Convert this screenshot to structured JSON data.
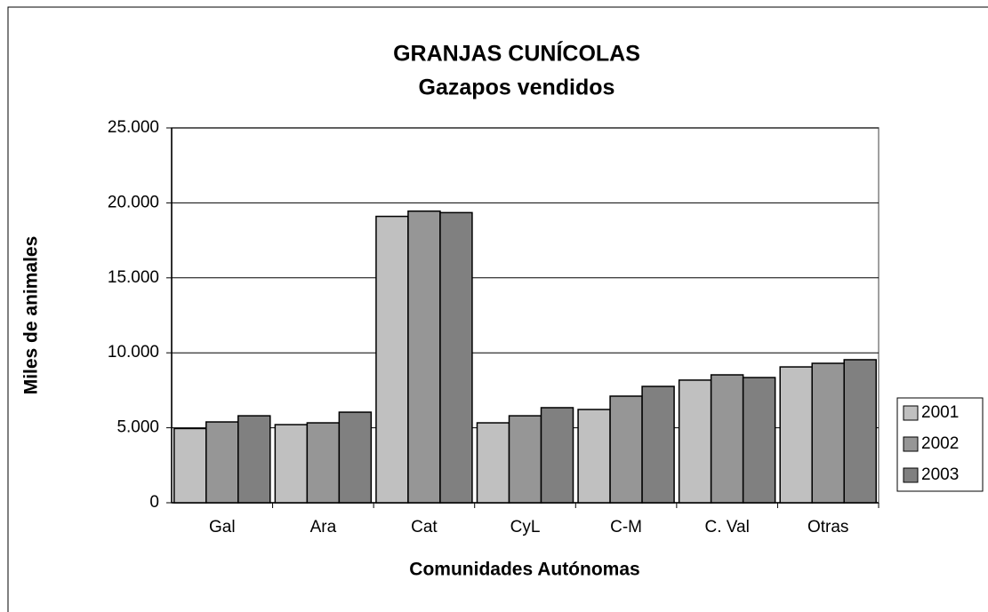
{
  "chart_data": {
    "type": "bar",
    "title": "GRANJAS CUNÍCOLAS",
    "subtitle": "Gazapos vendidos",
    "x_label": "Comunidades Autónomas",
    "y_label": "Miles de animales",
    "categories": [
      "Gal",
      "Ara",
      "Cat",
      "CyL",
      "C-M",
      "C. Val",
      "Otras"
    ],
    "series": [
      {
        "name": "2001",
        "color": "#c0c0c0",
        "values": [
          4950,
          5210,
          19100,
          5330,
          6220,
          8180,
          9060
        ]
      },
      {
        "name": "2002",
        "color": "#969696",
        "values": [
          5390,
          5330,
          19450,
          5800,
          7110,
          8530,
          9300
        ]
      },
      {
        "name": "2003",
        "color": "#808080",
        "values": [
          5800,
          6040,
          19350,
          6340,
          7760,
          8350,
          9540
        ]
      }
    ],
    "ylim": [
      0,
      25000
    ],
    "yticks": [
      0,
      {
        "value": 5000,
        "label": "5.000"
      },
      {
        "value": 10000,
        "label": "10.000"
      },
      {
        "value": 15000,
        "label": "15.000"
      },
      {
        "value": 20000,
        "label": "20.000"
      },
      {
        "value": 25000,
        "label": "25.000"
      }
    ],
    "grid": true,
    "legend": "right"
  }
}
